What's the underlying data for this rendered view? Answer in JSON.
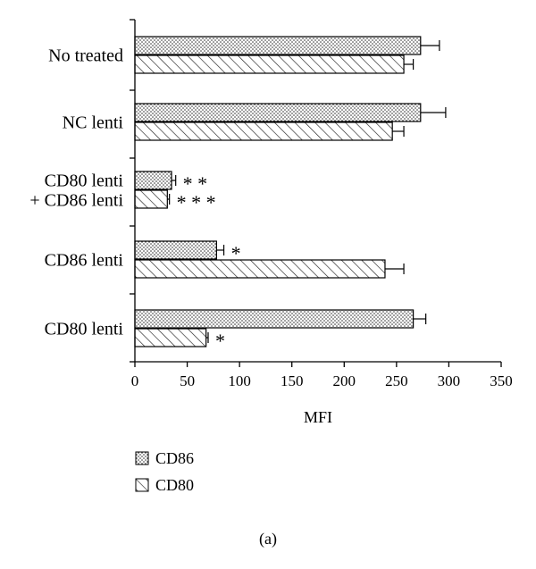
{
  "chart_data": {
    "type": "bar",
    "orientation": "horizontal",
    "categories": [
      [
        "No treated"
      ],
      [
        "NC lenti"
      ],
      [
        "CD80 lenti",
        "+ CD86 lenti"
      ],
      [
        "CD86 lenti"
      ],
      [
        "CD80 lenti"
      ]
    ],
    "series": [
      {
        "name": "CD86",
        "pattern": "dots",
        "values": [
          273,
          273,
          35,
          78,
          266
        ],
        "errors": [
          18,
          24,
          4,
          7,
          12
        ],
        "significance": [
          "",
          "",
          "* *",
          "*",
          ""
        ]
      },
      {
        "name": "CD80",
        "pattern": "hatch",
        "values": [
          257,
          246,
          31,
          239,
          68
        ],
        "errors": [
          9,
          11,
          2,
          18,
          2
        ],
        "significance": [
          "",
          "",
          "* * *",
          "",
          "*"
        ]
      }
    ],
    "xlabel": "MFI",
    "ylabel": "",
    "xlim": [
      0,
      350
    ],
    "xticks": [
      0,
      50,
      100,
      150,
      200,
      250,
      300,
      350
    ],
    "grid": false,
    "legend": "bottom-left",
    "caption": "(a)"
  }
}
